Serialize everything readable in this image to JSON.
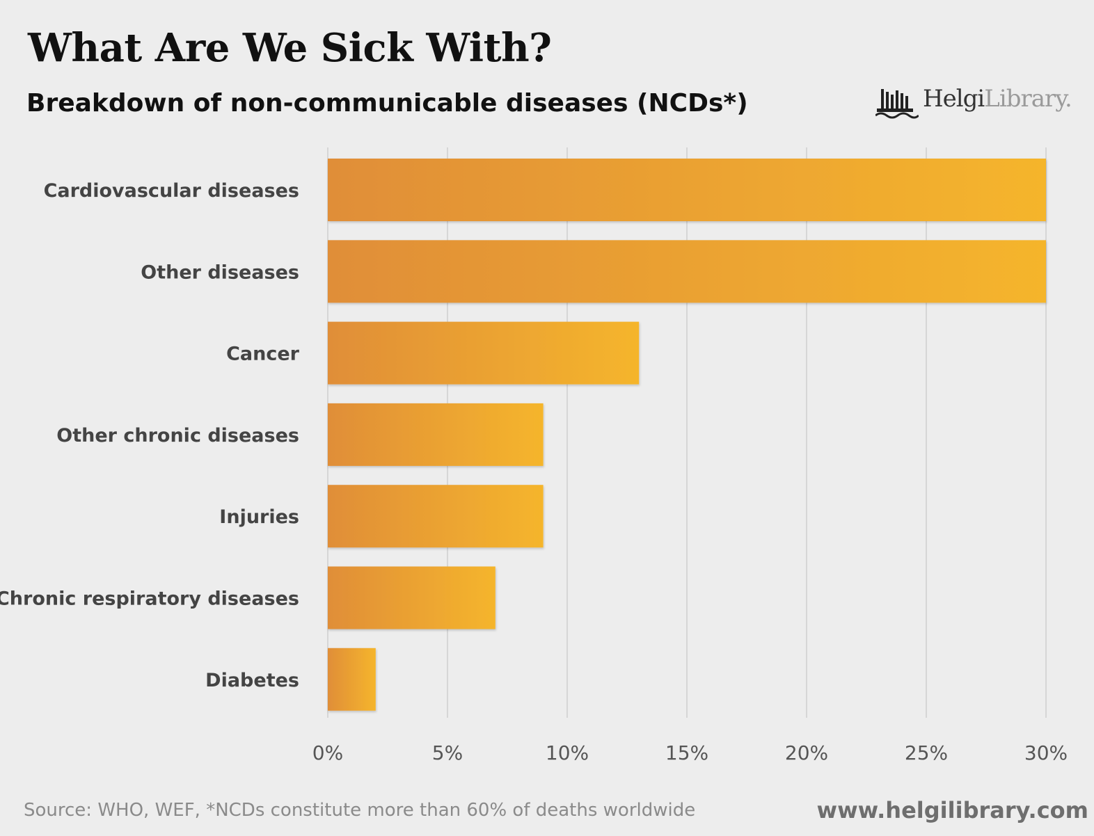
{
  "header": {
    "title": "What Are We Sick With?",
    "subtitle": "Breakdown of non-communicable diseases (NCDs*)"
  },
  "logo": {
    "name_primary": "Helgi",
    "name_secondary": "Library.",
    "icon": "city-skyline-icon"
  },
  "footer": {
    "source": "Source: WHO, WEF, *NCDs constitute more than 60% of deaths worldwide",
    "url": "www.helgilibrary.com"
  },
  "colors": {
    "bar_start": "#e08e38",
    "bar_end": "#f5b52c",
    "grid": "#d6d6d6",
    "label": "#444444",
    "tick": "#555555"
  },
  "chart_data": {
    "type": "bar",
    "orientation": "horizontal",
    "categories": [
      "Cardiovascular diseases",
      "Other diseases",
      "Cancer",
      "Other chronic diseases",
      "Injuries",
      "Chronic respiratory diseases",
      "Diabetes"
    ],
    "values": [
      30,
      30,
      13,
      9,
      9,
      7,
      2
    ],
    "unit": "%",
    "xlim": [
      0,
      30
    ],
    "xticks": [
      0,
      5,
      10,
      15,
      20,
      25,
      30
    ],
    "xtick_labels": [
      "0%",
      "5%",
      "10%",
      "15%",
      "20%",
      "25%",
      "30%"
    ],
    "grid": true,
    "legend": "none"
  }
}
